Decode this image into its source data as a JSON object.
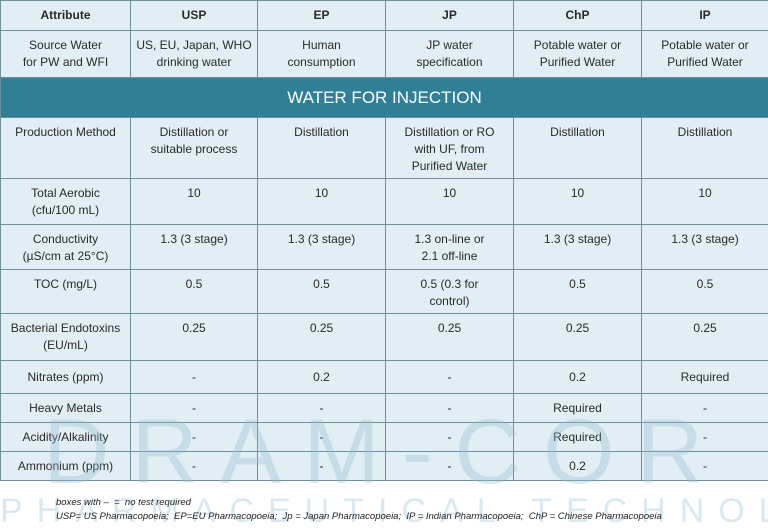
{
  "headers": [
    "Attribute",
    "USP",
    "EP",
    "JP",
    "ChP",
    "IP"
  ],
  "source_row": [
    "Source Water\nfor PW and WFI",
    "US, EU, Japan,  WHO\ndrinking water",
    "Human\nconsumption",
    "JP water\nspecification",
    "Potable water or\nPurified Water",
    "Potable water or\nPurified Water"
  ],
  "banner": "WATER FOR INJECTION",
  "rows": [
    [
      "Production Method",
      "Distillation or\nsuitable process",
      "Distillation",
      "Distillation or RO\nwith UF, from\nPurified Water",
      "Distillation",
      "Distillation"
    ],
    [
      "Total Aerobic\n(cfu/100 mL)",
      "10",
      "10",
      "10",
      "10",
      "10"
    ],
    [
      "Conductivity\n(µS/cm at 25°C)",
      "1.3 (3 stage)",
      "1.3 (3 stage)",
      "1.3  on-line or\n2.1  off-line",
      "1.3 (3 stage)",
      "1.3 (3 stage)"
    ],
    [
      "TOC (mg/L)",
      "0.5",
      "0.5",
      "0.5 (0.3 for\ncontrol)",
      "0.5",
      "0.5"
    ],
    [
      "Bacterial Endotoxins\n(EU/mL)",
      "0.25",
      "0.25",
      "0.25",
      "0.25",
      "0.25"
    ],
    [
      "Nitrates (ppm)",
      "-",
      "0.2",
      "-",
      "0.2",
      "Required"
    ],
    [
      "Heavy Metals",
      "-",
      "-",
      "-",
      "Required",
      "-"
    ],
    [
      "Acidity/Alkalinity",
      "-",
      "-",
      "-",
      "Required",
      "-"
    ],
    [
      "Ammonium (ppm)",
      "-",
      "-",
      "-",
      "0.2",
      "-"
    ]
  ],
  "footnotes": [
    "boxes with –  =  no test required",
    "USP= US Pharmacopoeia;  EP=EU Pharmacopoeia;  Jp = Japan Pharmacopoeia;  IP = Indian Pharmacopoeia;  ChP = Chinese Pharmacopoeia"
  ],
  "watermark": {
    "line1": "DRAM-COR",
    "line2": "PHARMACEUTICAL TECHNOLOGIES"
  },
  "colors": {
    "banner": "#2f7f96",
    "cell": "#e1eef3",
    "border": "#6f8f99"
  }
}
